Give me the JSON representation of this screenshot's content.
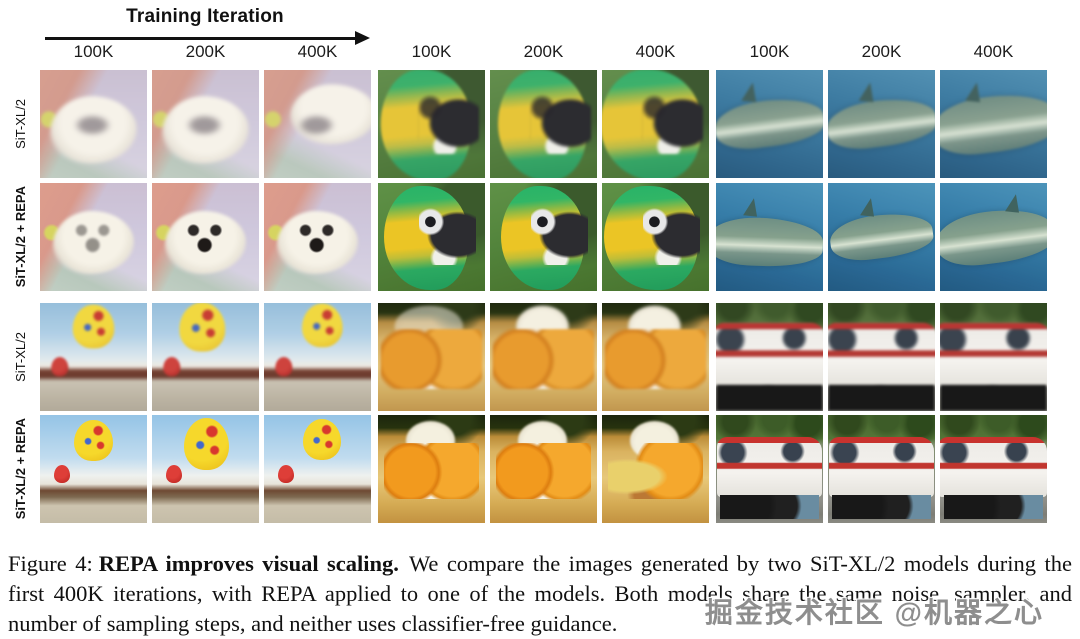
{
  "header": {
    "title": "Training Iteration",
    "column_labels": [
      "100K",
      "200K",
      "400K",
      "100K",
      "200K",
      "400K",
      "100K",
      "200K",
      "400K"
    ]
  },
  "scenes": {
    "dog": "white puppy on a bed",
    "parrot": "green-and-yellow macaw parrot",
    "shark": "shark swimming underwater",
    "balloon": "hot air balloons over a crowd",
    "food": "burger meal on a tray",
    "truck": "fire rescue truck"
  },
  "grid": {
    "rows": [
      {
        "label": "SiT-XL/2",
        "emphasis": false,
        "cells": [
          {
            "scene": "dog",
            "iteration": "100K",
            "quality": "rough"
          },
          {
            "scene": "dog",
            "iteration": "200K",
            "quality": "rough"
          },
          {
            "scene": "dog",
            "iteration": "400K",
            "quality": "rough"
          },
          {
            "scene": "parrot",
            "iteration": "100K",
            "quality": "rough"
          },
          {
            "scene": "parrot",
            "iteration": "200K",
            "quality": "rough"
          },
          {
            "scene": "parrot",
            "iteration": "400K",
            "quality": "rough"
          },
          {
            "scene": "shark",
            "iteration": "100K",
            "quality": "rough"
          },
          {
            "scene": "shark",
            "iteration": "200K",
            "quality": "rough"
          },
          {
            "scene": "shark",
            "iteration": "400K",
            "quality": "rough"
          }
        ]
      },
      {
        "label": "SiT-XL/2 + REPA",
        "emphasis": true,
        "cells": [
          {
            "scene": "dog",
            "iteration": "100K",
            "quality": "clear"
          },
          {
            "scene": "dog",
            "iteration": "200K",
            "quality": "clear"
          },
          {
            "scene": "dog",
            "iteration": "400K",
            "quality": "clear"
          },
          {
            "scene": "parrot",
            "iteration": "100K",
            "quality": "clear"
          },
          {
            "scene": "parrot",
            "iteration": "200K",
            "quality": "clear"
          },
          {
            "scene": "parrot",
            "iteration": "400K",
            "quality": "clear"
          },
          {
            "scene": "shark",
            "iteration": "100K",
            "quality": "clear"
          },
          {
            "scene": "shark",
            "iteration": "200K",
            "quality": "clear"
          },
          {
            "scene": "shark",
            "iteration": "400K",
            "quality": "clear"
          }
        ]
      },
      {
        "label": "SiT-XL/2",
        "emphasis": false,
        "cells": [
          {
            "scene": "balloon",
            "iteration": "100K",
            "quality": "rough"
          },
          {
            "scene": "balloon",
            "iteration": "200K",
            "quality": "rough"
          },
          {
            "scene": "balloon",
            "iteration": "400K",
            "quality": "rough"
          },
          {
            "scene": "food",
            "iteration": "100K",
            "quality": "rough"
          },
          {
            "scene": "food",
            "iteration": "200K",
            "quality": "rough"
          },
          {
            "scene": "food",
            "iteration": "400K",
            "quality": "rough"
          },
          {
            "scene": "truck",
            "iteration": "100K",
            "quality": "rough"
          },
          {
            "scene": "truck",
            "iteration": "200K",
            "quality": "rough"
          },
          {
            "scene": "truck",
            "iteration": "400K",
            "quality": "rough"
          }
        ]
      },
      {
        "label": "SiT-XL/2 + REPA",
        "emphasis": true,
        "cells": [
          {
            "scene": "balloon",
            "iteration": "100K",
            "quality": "clear"
          },
          {
            "scene": "balloon",
            "iteration": "200K",
            "quality": "clear"
          },
          {
            "scene": "balloon",
            "iteration": "400K",
            "quality": "clear"
          },
          {
            "scene": "food",
            "iteration": "100K",
            "quality": "clear"
          },
          {
            "scene": "food",
            "iteration": "200K",
            "quality": "clear"
          },
          {
            "scene": "food",
            "iteration": "400K",
            "quality": "clear"
          },
          {
            "scene": "truck",
            "iteration": "100K",
            "quality": "clear"
          },
          {
            "scene": "truck",
            "iteration": "200K",
            "quality": "clear"
          },
          {
            "scene": "truck",
            "iteration": "400K",
            "quality": "clear"
          }
        ]
      }
    ]
  },
  "caption": {
    "prefix": "Figure 4:",
    "highlight": "REPA improves visual scaling.",
    "body": "We compare the images generated by two SiT-XL/2 models during the first 400K iterations, with REPA applied to one of the models. Both models share the same noise, sampler, and number of sampling steps, and neither uses classifier-free guidance."
  },
  "watermark": {
    "text": "掘金技术社区 @机器之心"
  },
  "colors": {
    "caption_text": "#111111",
    "watermark_gray": "#8e8e8e",
    "arrow_black": "#111111"
  }
}
